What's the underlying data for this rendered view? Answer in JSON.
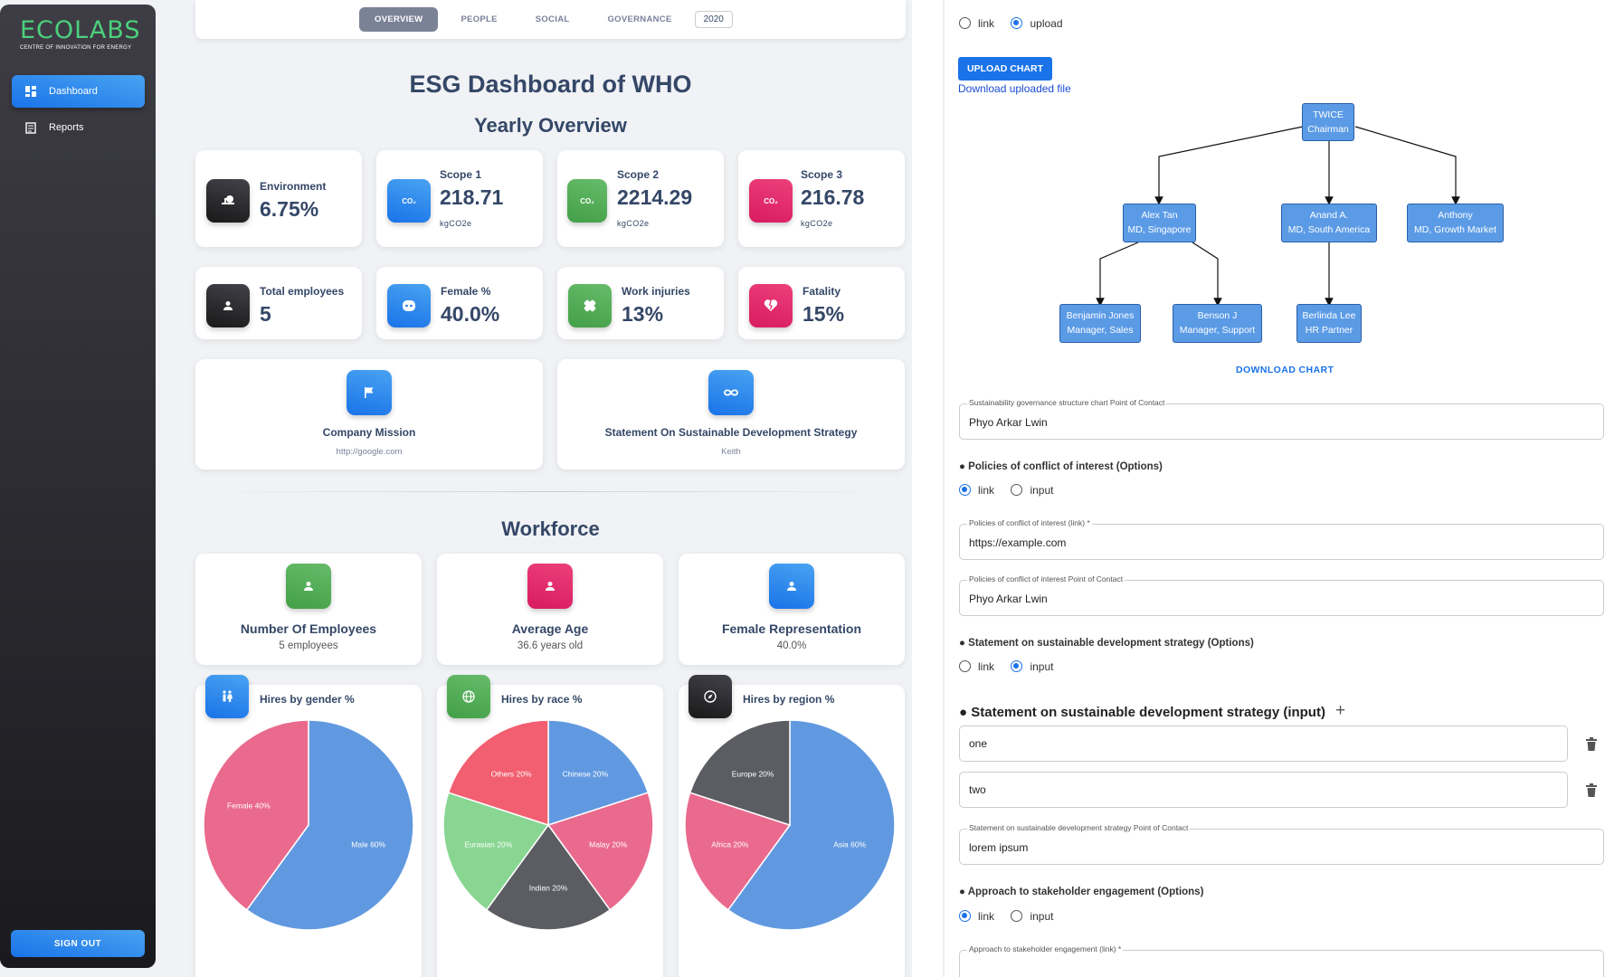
{
  "brand": {
    "title": "ECOLABS",
    "subtitle": "CENTRE OF INNOVATION FOR ENERGY",
    "accent": "#4cd07d"
  },
  "sidebar": {
    "items": [
      {
        "label": "Dashboard",
        "icon": "dashboard-icon",
        "active": true
      },
      {
        "label": "Reports",
        "icon": "report-icon",
        "active": false
      }
    ],
    "sign_out": "SIGN OUT"
  },
  "tabs": {
    "items": [
      "OVERVIEW",
      "PEOPLE",
      "SOCIAL",
      "GOVERNANCE"
    ],
    "active": "OVERVIEW",
    "year": "2020"
  },
  "main": {
    "title": "ESG Dashboard of WHO",
    "yearly_title": "Yearly Overview",
    "stats": [
      {
        "label": "Environment",
        "value": "6.75%",
        "unit": "",
        "icon": "environment-icon"
      },
      {
        "label": "Scope 1",
        "value": "218.71",
        "unit": "kgCO2e",
        "icon": "co2-icon"
      },
      {
        "label": "Scope 2",
        "value": "2214.29",
        "unit": "kgCO2e",
        "icon": "co2-icon"
      },
      {
        "label": "Scope 3",
        "value": "216.78",
        "unit": "kgCO2e",
        "icon": "co2-icon"
      },
      {
        "label": "Total employees",
        "value": "5",
        "icon": "person-icon"
      },
      {
        "label": "Female %",
        "value": "40.0%",
        "icon": "face-icon"
      },
      {
        "label": "Work injuries",
        "value": "13%",
        "icon": "bandage-icon"
      },
      {
        "label": "Fatality",
        "value": "15%",
        "icon": "broken-heart-icon"
      }
    ],
    "mission": {
      "title": "Company Mission",
      "sub": "http://google.com",
      "icon": "flag-icon"
    },
    "strategy": {
      "title": "Statement On Sustainable Development Strategy",
      "sub": "Keith",
      "icon": "infinity-icon"
    },
    "workforce_title": "Workforce",
    "workforce": [
      {
        "title": "Number Of Employees",
        "sub": "5 employees",
        "icon": "person-icon"
      },
      {
        "title": "Average Age",
        "sub": "36.6 years old",
        "icon": "person-icon"
      },
      {
        "title": "Female Representation",
        "sub": "40.0%",
        "icon": "person-icon"
      }
    ]
  },
  "chart_data": [
    {
      "type": "pie",
      "title": "Hires by gender %",
      "icon": "gender-icon",
      "slices": [
        {
          "label": "Male 60%",
          "value": 60,
          "color": "#6199e0"
        },
        {
          "label": "Female 40%",
          "value": 40,
          "color": "#ea6a8e"
        }
      ]
    },
    {
      "type": "pie",
      "title": "Hires by race %",
      "icon": "globe-icon",
      "slices": [
        {
          "label": "Chinese 20%",
          "value": 20,
          "color": "#6199e0"
        },
        {
          "label": "Malay 20%",
          "value": 20,
          "color": "#ea6a8e"
        },
        {
          "label": "Indian 20%",
          "value": 20,
          "color": "#5b5d63"
        },
        {
          "label": "Eurasian 20%",
          "value": 20,
          "color": "#88d692"
        },
        {
          "label": "Others 20%",
          "value": 20,
          "color": "#f25f70"
        }
      ]
    },
    {
      "type": "pie",
      "title": "Hires by region %",
      "icon": "compass-icon",
      "slices": [
        {
          "label": "Asia 60%",
          "value": 60,
          "color": "#6199e0"
        },
        {
          "label": "Africa 20%",
          "value": 20,
          "color": "#ea6a8e"
        },
        {
          "label": "Europe 20%",
          "value": 20,
          "color": "#5b5d63"
        }
      ]
    }
  ],
  "form": {
    "top_radio": {
      "options": [
        "link",
        "upload"
      ],
      "selected": "upload"
    },
    "upload_button": "UPLOAD CHART",
    "download_link": "Download uploaded file",
    "org": [
      {
        "id": "root",
        "line1": "TWICE",
        "line2": "Chairman"
      },
      {
        "id": "a",
        "line1": "Alex Tan",
        "line2": "MD, Singapore"
      },
      {
        "id": "b",
        "line1": "Anand A.",
        "line2": "MD, South America"
      },
      {
        "id": "c",
        "line1": "Anthony",
        "line2": "MD, Growth Market"
      },
      {
        "id": "a1",
        "line1": "Benjamin Jones",
        "line2": "Manager, Sales"
      },
      {
        "id": "a2",
        "line1": "Benson J",
        "line2": "Manager, Support"
      },
      {
        "id": "b1",
        "line1": "Berlinda Lee",
        "line2": "HR Partner"
      }
    ],
    "download_chart": "DOWNLOAD CHART",
    "gov_contact": {
      "label": "Sustainability governance structure chart Point of Contact",
      "value": "Phyo Arkar Lwin"
    },
    "coi_options": {
      "title": "Policies of conflict of interest (Options)",
      "options": [
        "link",
        "input"
      ],
      "selected": "link"
    },
    "coi_link": {
      "label": "Policies of conflict of interest (link) *",
      "value": "https://example.com"
    },
    "coi_contact": {
      "label": "Policies of conflict of interest Point of Contact",
      "value": "Phyo Arkar Lwin"
    },
    "sds_options": {
      "title": "Statement on sustainable development strategy (Options)",
      "options": [
        "link",
        "input"
      ],
      "selected": "input"
    },
    "sds_input_title": "Statement on sustainable development strategy (input)",
    "sds_items": [
      "one",
      "two"
    ],
    "sds_contact": {
      "label": "Statement on sustainable development strategy Point of Contact",
      "value": "lorem ipsum"
    },
    "stake_options": {
      "title": "Approach to stakeholder engagement (Options)",
      "options": [
        "link",
        "input"
      ],
      "selected": "link"
    },
    "stake_link": {
      "label": "Approach to stakeholder engagement (link) *",
      "value": ""
    }
  }
}
